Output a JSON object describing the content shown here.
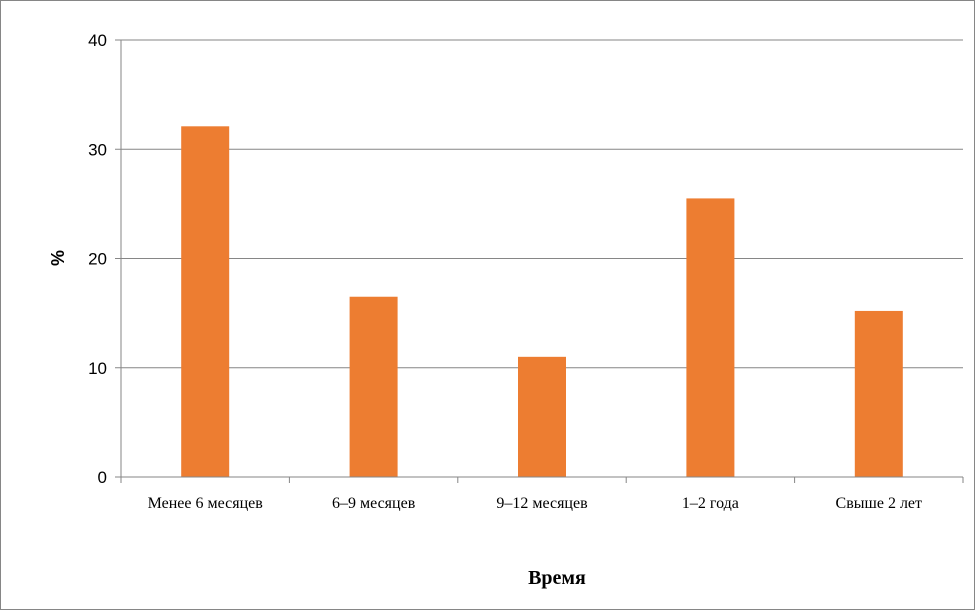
{
  "chart_data": {
    "type": "bar",
    "categories": [
      "Менее 6 месяцев",
      "6–9 месяцев",
      "9–12 месяцев",
      "1–2 года",
      "Свыше 2 лет"
    ],
    "values": [
      32.1,
      16.5,
      11.0,
      25.5,
      15.2
    ],
    "xlabel": "Время",
    "ylabel": "%",
    "ylim": [
      0,
      40
    ],
    "yticks": [
      0,
      10,
      20,
      30,
      40
    ],
    "grid": true,
    "bar_color": "#ED7D31"
  }
}
